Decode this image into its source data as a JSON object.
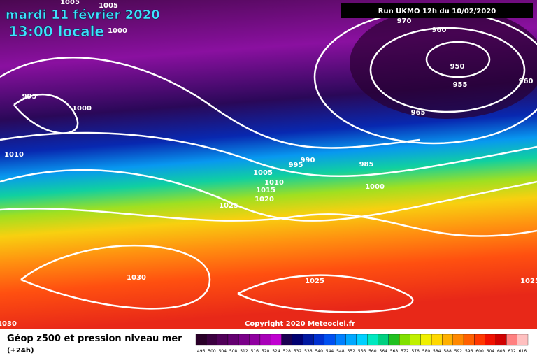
{
  "header": {
    "date": "mardi 11 février 2020",
    "time": "13:00 locale",
    "run": "Run UKMO 12h du 10/02/2020"
  },
  "isobar_labels": [
    "1005",
    "1005",
    "1000",
    "995",
    "1000",
    "1010",
    "970",
    "960",
    "950",
    "955",
    "960",
    "965",
    "990",
    "995",
    "985",
    "1005",
    "1010",
    "1015",
    "1020",
    "1000",
    "1025",
    "1030",
    "1025",
    "1030",
    "1025"
  ],
  "copyright": "Copyright 2020 Meteociel.fr",
  "footer": {
    "title": "Géop z500 et pression niveau mer",
    "lead": "(+24h)"
  },
  "colorbar": [
    {
      "label": "496",
      "color": "#2a0028"
    },
    {
      "label": "500",
      "color": "#3c0040"
    },
    {
      "label": "504",
      "color": "#500058"
    },
    {
      "label": "508",
      "color": "#640070"
    },
    {
      "label": "512",
      "color": "#7a0088"
    },
    {
      "label": "516",
      "color": "#9000a0"
    },
    {
      "label": "520",
      "color": "#a800b8"
    },
    {
      "label": "524",
      "color": "#c000d0"
    },
    {
      "label": "528",
      "color": "#1a0050"
    },
    {
      "label": "532",
      "color": "#000070"
    },
    {
      "label": "536",
      "color": "#0018a0"
    },
    {
      "label": "540",
      "color": "#0030d0"
    },
    {
      "label": "544",
      "color": "#0050f0"
    },
    {
      "label": "548",
      "color": "#0080ff"
    },
    {
      "label": "552",
      "color": "#00a8ff"
    },
    {
      "label": "556",
      "color": "#00d0ff"
    },
    {
      "label": "560",
      "color": "#00e8c0"
    },
    {
      "label": "564",
      "color": "#00d080"
    },
    {
      "label": "568",
      "color": "#20c020"
    },
    {
      "label": "572",
      "color": "#80e000"
    },
    {
      "label": "576",
      "color": "#c0f000"
    },
    {
      "label": "580",
      "color": "#f0f000"
    },
    {
      "label": "584",
      "color": "#ffd800"
    },
    {
      "label": "588",
      "color": "#ffb000"
    },
    {
      "label": "592",
      "color": "#ff8800"
    },
    {
      "label": "596",
      "color": "#ff6000"
    },
    {
      "label": "600",
      "color": "#ff3800"
    },
    {
      "label": "604",
      "color": "#f01000"
    },
    {
      "label": "608",
      "color": "#d00000"
    },
    {
      "label": "612",
      "color": "#ff8080"
    },
    {
      "label": "616",
      "color": "#ffc0c0"
    }
  ]
}
